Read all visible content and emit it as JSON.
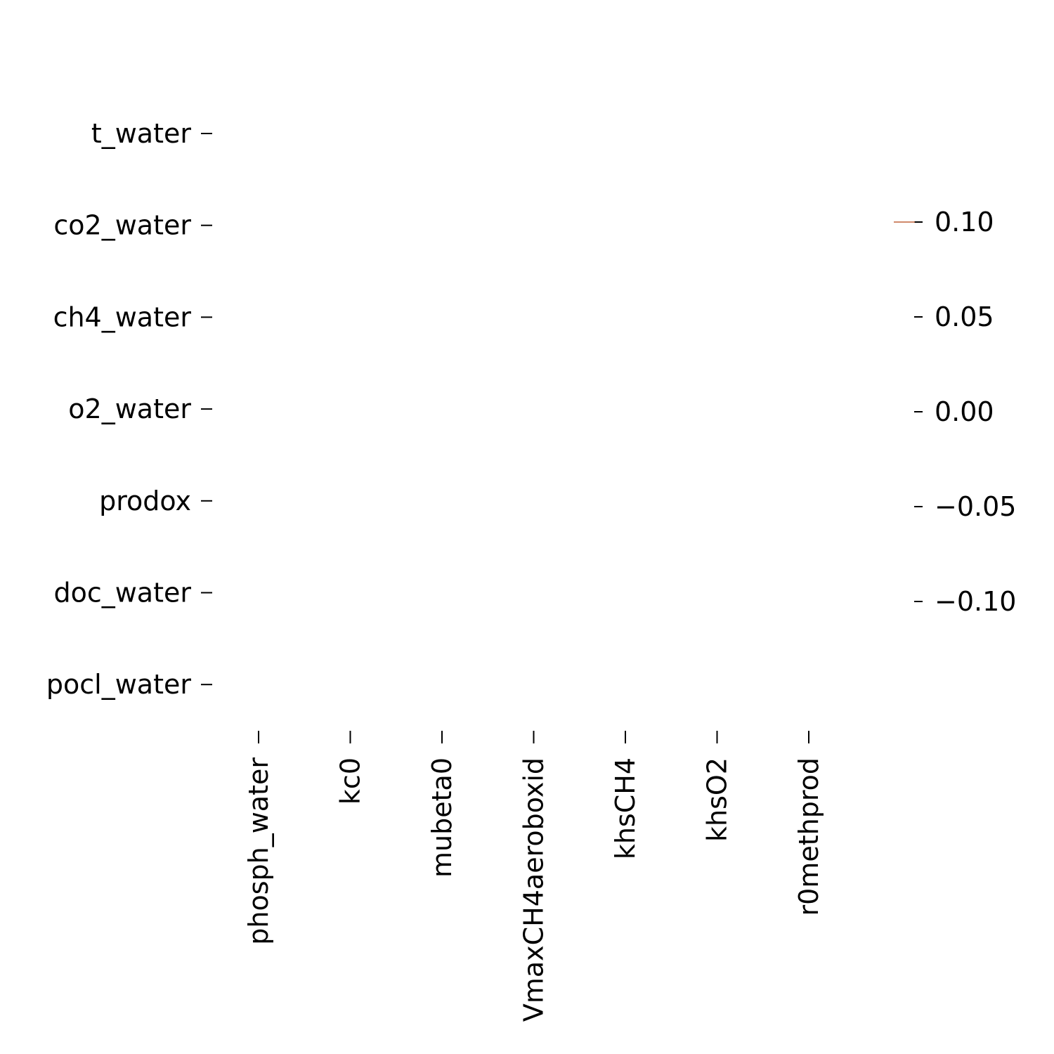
{
  "chart_data": {
    "type": "heatmap",
    "title": "",
    "xlabel": "",
    "ylabel": "",
    "rows": [
      "t_water",
      "co2_water",
      "ch4_water",
      "o2_water",
      "prodox",
      "doc_water",
      "pocl_water"
    ],
    "columns": [
      "phosph_water",
      "kc0",
      "mubeta0",
      "VmaxCH4aeroboxid",
      "khsCH4",
      "khsO2",
      "r0methprod"
    ],
    "values": [],
    "colorbar": {
      "ticks": [
        0.1,
        0.05,
        0.0,
        -0.05,
        -0.1
      ],
      "tick_labels": [
        "0.10",
        "0.05",
        "0.00",
        "−0.05",
        "−0.10"
      ],
      "range": [
        -0.12,
        0.12
      ],
      "marker_value": 0.1,
      "marker_color": "#c0643a"
    },
    "grid": false,
    "legend": "colorbar-right"
  }
}
